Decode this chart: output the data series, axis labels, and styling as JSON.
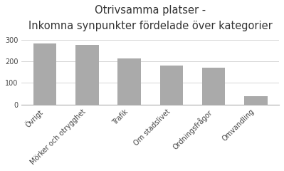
{
  "title_line1": "Otrivsamma platser -",
  "title_line2": "Inkomna synpunkter fördelade över kategorier",
  "categories": [
    "Övrigt",
    "Mörker och otrygghet",
    "Trafik",
    "Om stadslivet",
    "Ordningsfrågor",
    "Omvandling"
  ],
  "values": [
    283,
    276,
    212,
    181,
    170,
    40
  ],
  "bar_color": "#aaaaaa",
  "ylim": [
    0,
    320
  ],
  "yticks": [
    0,
    100,
    200,
    300
  ],
  "background_color": "#ffffff",
  "grid_color": "#d0d0d0",
  "title_fontsize": 10.5,
  "subtitle_fontsize": 8.5,
  "tick_fontsize": 7,
  "title_color": "#333333",
  "subtitle_color": "#444444"
}
